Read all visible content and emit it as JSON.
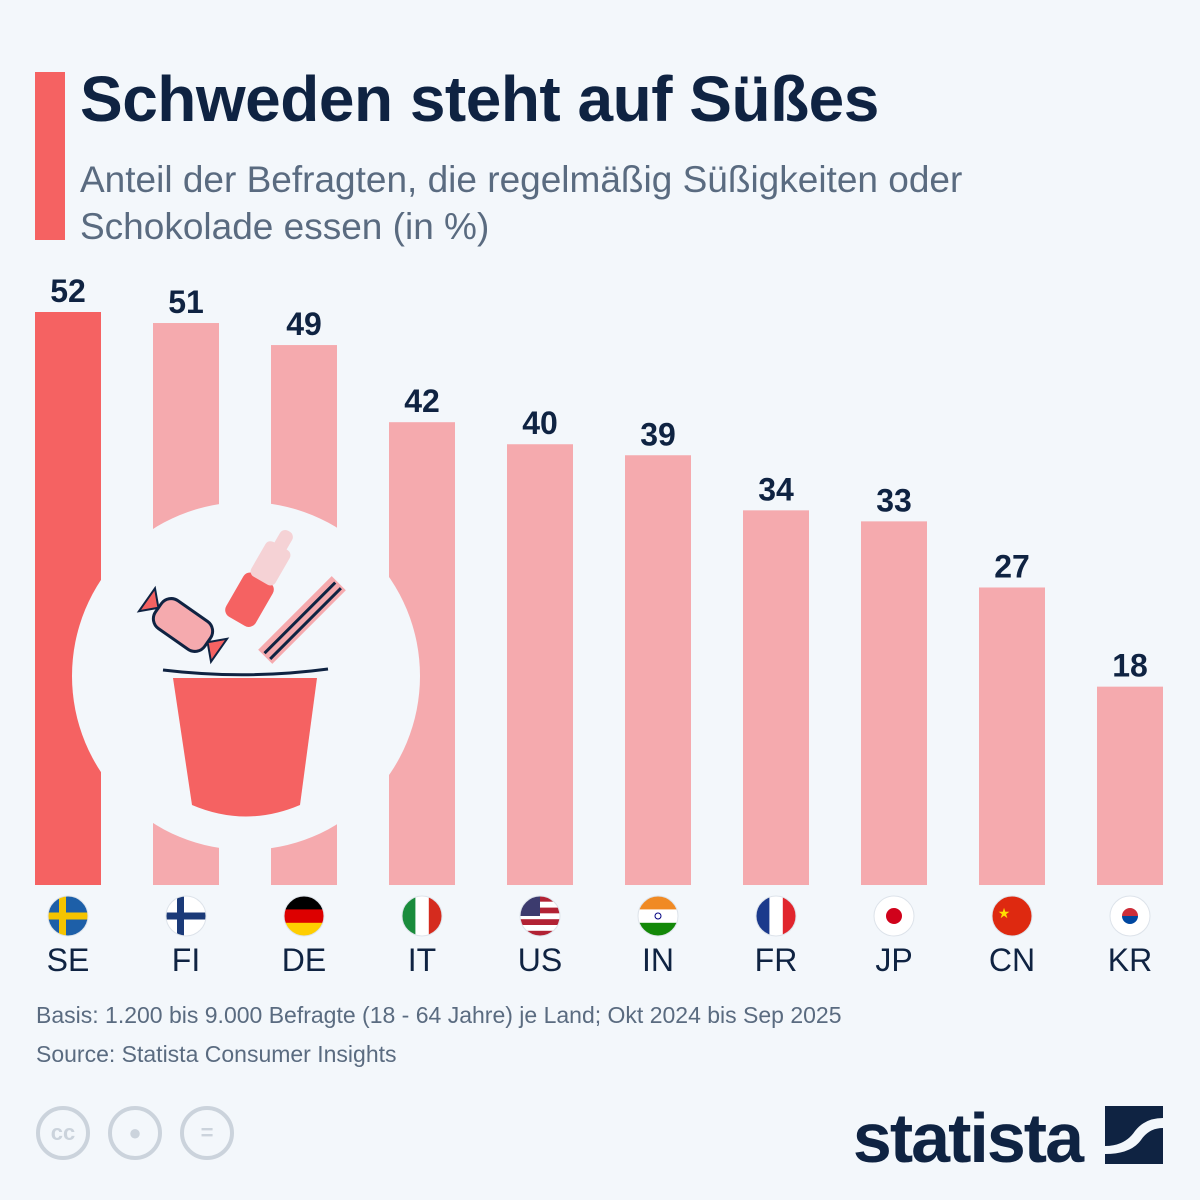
{
  "header": {
    "title": "Schweden steht auf Süßes",
    "subtitle": "Anteil der Befragten, die regelmäßig Süßigkeiten oder Schokolade essen (in %)"
  },
  "chart_data": {
    "type": "bar",
    "title": "Schweden steht auf Süßes",
    "subtitle": "Anteil der Befragten, die regelmäßig Süßigkeiten oder Schokolade essen (in %)",
    "categories": [
      "SE",
      "FI",
      "DE",
      "IT",
      "US",
      "IN",
      "FR",
      "JP",
      "CN",
      "KR"
    ],
    "values": [
      52,
      51,
      49,
      42,
      40,
      39,
      34,
      33,
      27,
      18
    ],
    "ylim": [
      0,
      52
    ],
    "highlight": "SE",
    "colors": {
      "highlight": "#f56262",
      "default": "#f5aaae",
      "label": "#0f2342"
    }
  },
  "footer": {
    "basis": "Basis: 1.200 bis 9.000 Befragte (18 - 64 Jahre) je Land; Okt 2024 bis Sep 2025",
    "source": "Source: Statista Consumer Insights",
    "cc": "cc",
    "equals": "="
  },
  "brand": {
    "logo": "statista"
  }
}
